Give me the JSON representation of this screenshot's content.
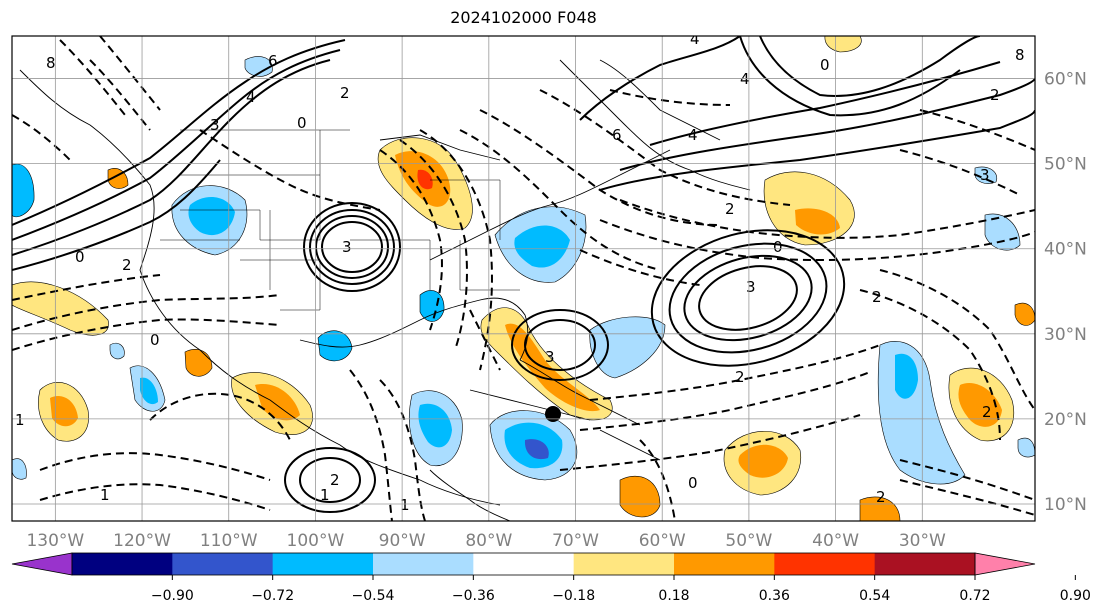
{
  "title": "2024102000 F048",
  "map": {
    "lon_labels": [
      "130°W",
      "120°W",
      "110°W",
      "100°W",
      "90°W",
      "80°W",
      "70°W",
      "60°W",
      "50°W",
      "40°W",
      "30°W"
    ],
    "lat_labels": [
      "60°N",
      "50°N",
      "40°N",
      "30°N",
      "20°N",
      "10°N"
    ],
    "lon_values": [
      -130,
      -120,
      -110,
      -100,
      -90,
      -80,
      -70,
      -60,
      -50,
      -40,
      -30
    ],
    "lat_values": [
      60,
      50,
      40,
      30,
      20,
      10
    ],
    "lon_range": [
      -135,
      -17
    ],
    "lat_range": [
      8,
      65
    ],
    "grid": true,
    "axis_label_color": "#808080",
    "contour_labels": [
      "8",
      "6",
      "4",
      "3",
      "2",
      "0",
      "0",
      "2",
      "4",
      "4",
      "8",
      "6",
      "4",
      "2",
      "3",
      "2",
      "0",
      "3",
      "3",
      "3",
      "2",
      "0",
      "0",
      "2",
      "2",
      "1",
      "1",
      "1",
      "2",
      "0",
      "1",
      "2"
    ],
    "marker": "filled-circle"
  },
  "colorbar": {
    "tick_labels": [
      "−0.90",
      "−0.72",
      "−0.54",
      "−0.36",
      "−0.18",
      "0.18",
      "0.36",
      "0.54",
      "0.72",
      "0.90"
    ],
    "tick_values": [
      -0.9,
      -0.72,
      -0.54,
      -0.36,
      -0.18,
      0.18,
      0.36,
      0.54,
      0.72,
      0.9
    ],
    "colors": [
      "#9933cc",
      "#000080",
      "#3355cc",
      "#00bbff",
      "#aaddff",
      "#ffffff",
      "#ffe680",
      "#ff9900",
      "#ff3300",
      "#aa1122",
      "#ff80aa"
    ],
    "extend": "both"
  }
}
